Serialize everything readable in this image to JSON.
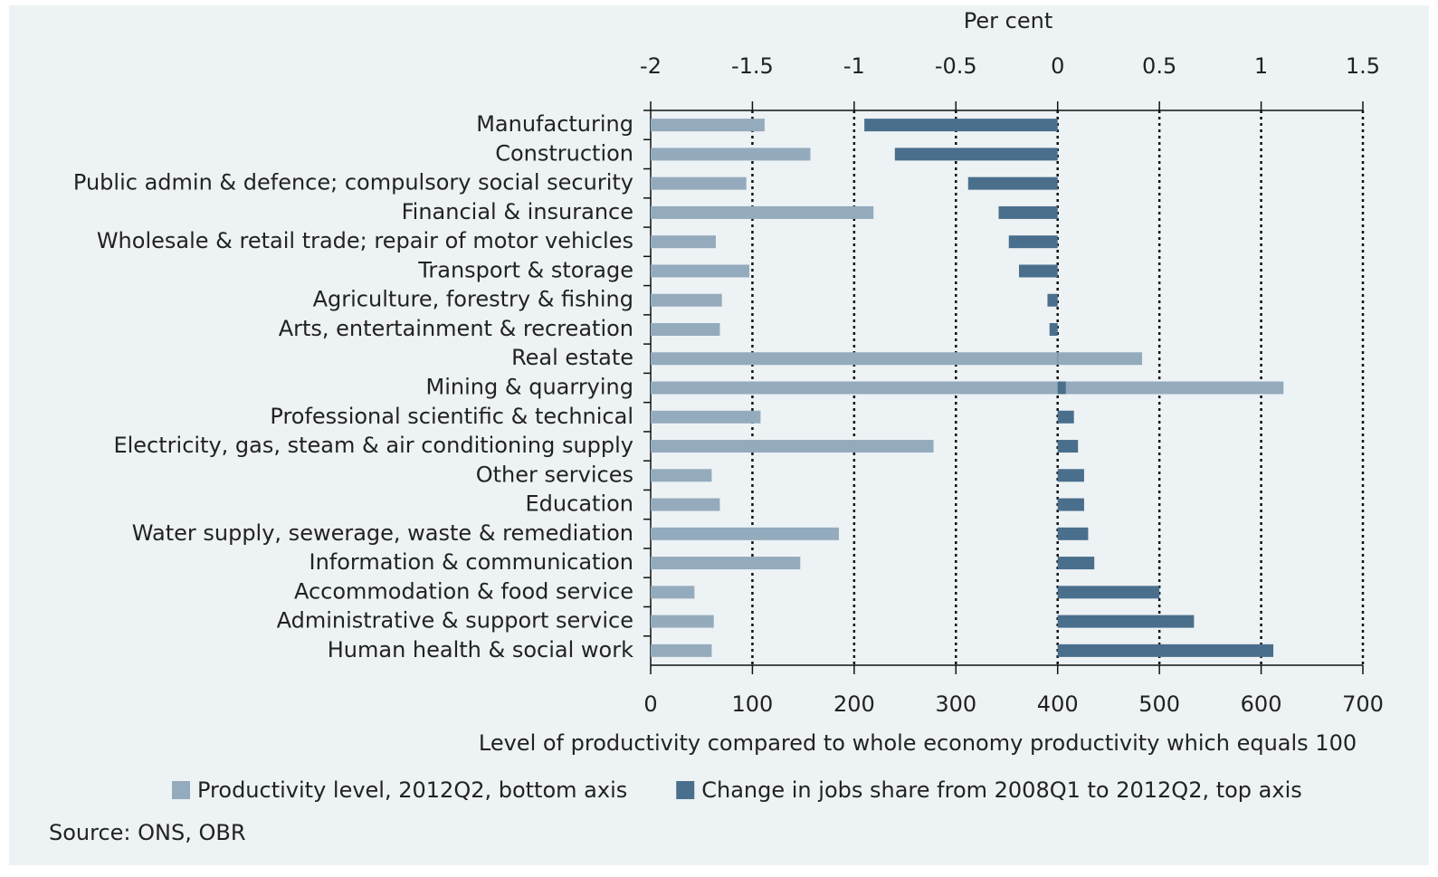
{
  "chart_data": {
    "type": "bar",
    "orientation": "horizontal",
    "x2_label": "Per cent",
    "x_label": "Level of productivity compared to whole economy productivity which equals 100",
    "source": "Source: ONS, OBR",
    "categories": [
      "Manufacturing",
      "Construction",
      "Public admin & defence; compulsory social security",
      "Financial & insurance",
      "Wholesale & retail trade; repair of motor vehicles",
      "Transport & storage",
      "Agriculture, forestry & fishing",
      "Arts, entertainment & recreation",
      "Real estate",
      "Mining & quarrying",
      "Professional scientific & technical",
      "Electricity, gas, steam & air conditioning supply",
      "Other services",
      "Education",
      "Water supply, sewerage, waste & remediation",
      "Information & communication",
      "Accommodation & food service",
      "Administrative & support service",
      "Human health & social work"
    ],
    "series": [
      {
        "name": "Productivity level, 2012Q2, bottom axis",
        "color": "#94abbd",
        "axis": "x",
        "values": [
          112,
          157,
          94,
          219,
          64,
          97,
          70,
          68,
          483,
          622,
          108,
          278,
          60,
          68,
          185,
          147,
          43,
          62,
          60
        ]
      },
      {
        "name": "Change in jobs share from 2008Q1 to 2012Q2, top axis",
        "color": "#4a6f8c",
        "axis": "x2",
        "values": [
          -0.95,
          -0.8,
          -0.44,
          -0.29,
          -0.24,
          -0.19,
          -0.05,
          -0.04,
          0,
          0.04,
          0.08,
          0.1,
          0.13,
          0.13,
          0.15,
          0.18,
          0.5,
          0.67,
          1.06
        ]
      }
    ],
    "xlim": [
      0,
      700
    ],
    "xticks": [
      0,
      100,
      200,
      300,
      400,
      500,
      600,
      700
    ],
    "x2lim": [
      -2,
      1.5
    ],
    "x2ticks": [
      -2,
      -1.5,
      -1,
      -0.5,
      0,
      0.5,
      1,
      1.5
    ],
    "grid": true
  }
}
